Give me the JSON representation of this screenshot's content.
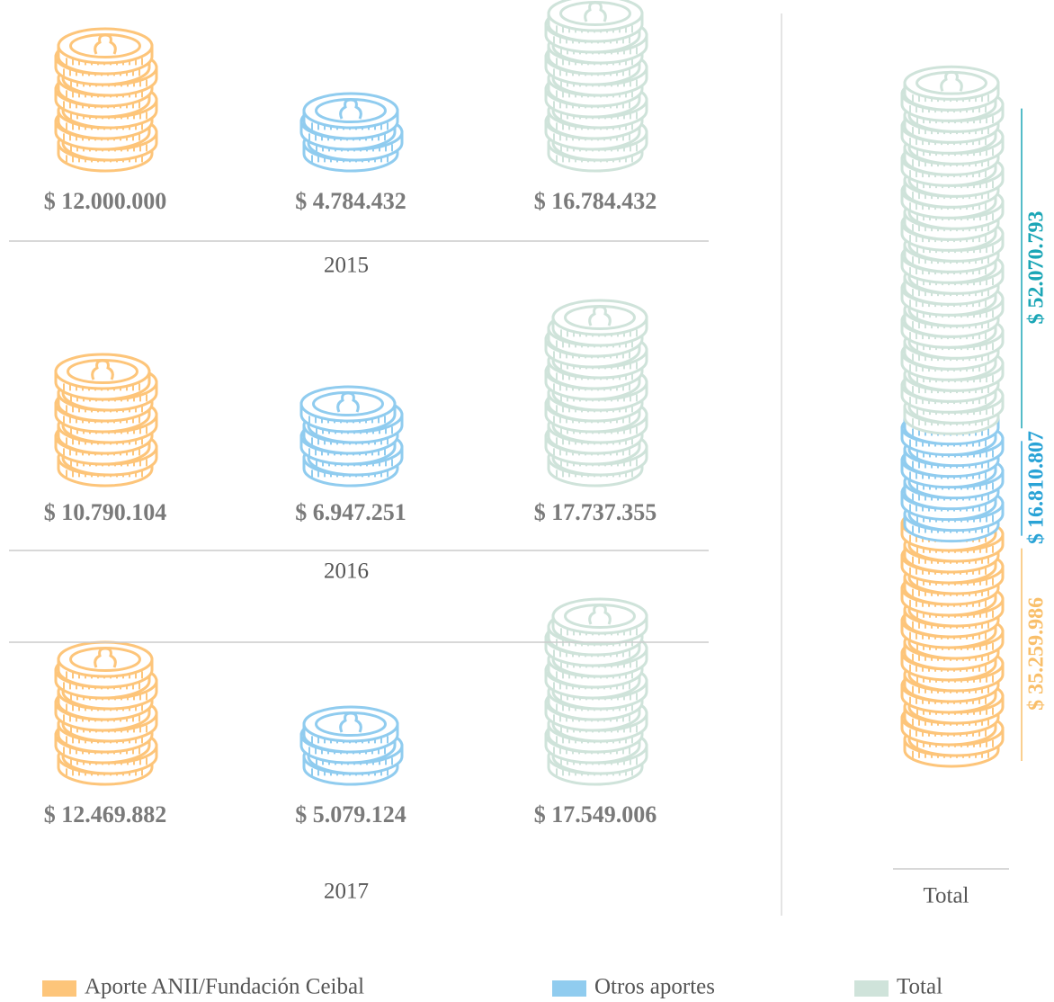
{
  "chart_data": {
    "type": "coin-stack",
    "categories": [
      "2015",
      "2016",
      "2017"
    ],
    "series": [
      {
        "name": "Aporte ANII/Fundación Ceibal",
        "color": "#fdc57a",
        "values": [
          12000000,
          10790104,
          12469882
        ],
        "value_labels": [
          "$ 12.000.000",
          "$ 10.790.104",
          "$ 12.469.882"
        ]
      },
      {
        "name": "Otros aportes",
        "color": "#90ccef",
        "values": [
          4784432,
          6947251,
          5079124
        ],
        "value_labels": [
          "$ 4.784.432",
          "$ 6.947.251",
          "$ 5.079.124"
        ]
      },
      {
        "name": "Total",
        "color": "#cfe3da",
        "values": [
          16784432,
          17737355,
          17549006
        ],
        "value_labels": [
          "$ 16.784.432",
          "$ 17.737.355",
          "$ 17.549.006"
        ]
      }
    ],
    "total": {
      "label": "Total",
      "values": [
        35259986,
        16810807,
        52070793
      ],
      "value_labels": [
        "$ 35.259.986",
        "$ 16.810.807",
        "$ 52.070.793"
      ],
      "label_colors": [
        "#f9bf6a",
        "#29a3d6",
        "#1ba6b6"
      ]
    }
  }
}
